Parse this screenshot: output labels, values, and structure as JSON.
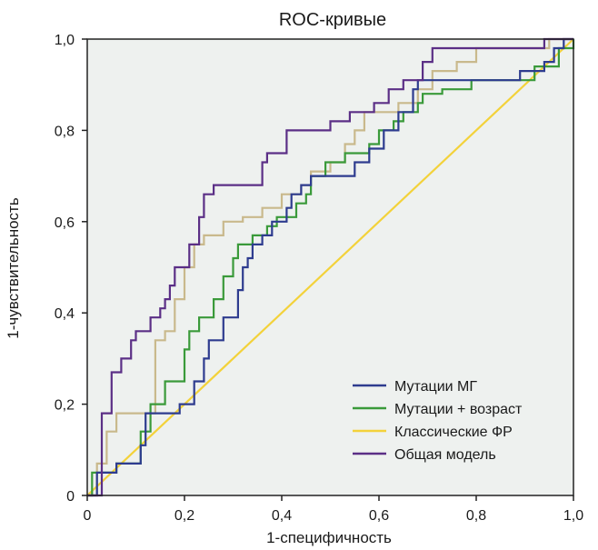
{
  "chart_data": {
    "type": "line",
    "title": "ROC-кривые",
    "xlabel": "1-специфичность",
    "ylabel": "1-чувствительность",
    "xlim": [
      0,
      1
    ],
    "ylim": [
      0,
      1
    ],
    "x_ticks": [
      "0",
      "0,2",
      "0,4",
      "0,6",
      "0,8",
      "1,0"
    ],
    "y_ticks": [
      "0",
      "0,2",
      "0,4",
      "0,6",
      "0,8",
      "1,0"
    ],
    "grid": false,
    "legend_position": "bottom-right",
    "plot_background": "#eef1ef",
    "series": [
      {
        "name": "Мутации МГ",
        "color": "#2e3c8f",
        "points": [
          [
            0,
            0
          ],
          [
            0.02,
            0
          ],
          [
            0.02,
            0.05
          ],
          [
            0.06,
            0.05
          ],
          [
            0.06,
            0.07
          ],
          [
            0.11,
            0.07
          ],
          [
            0.11,
            0.11
          ],
          [
            0.12,
            0.11
          ],
          [
            0.12,
            0.18
          ],
          [
            0.19,
            0.18
          ],
          [
            0.19,
            0.2
          ],
          [
            0.22,
            0.2
          ],
          [
            0.22,
            0.25
          ],
          [
            0.24,
            0.25
          ],
          [
            0.24,
            0.3
          ],
          [
            0.25,
            0.3
          ],
          [
            0.25,
            0.34
          ],
          [
            0.28,
            0.34
          ],
          [
            0.28,
            0.39
          ],
          [
            0.31,
            0.39
          ],
          [
            0.31,
            0.45
          ],
          [
            0.32,
            0.45
          ],
          [
            0.32,
            0.5
          ],
          [
            0.33,
            0.5
          ],
          [
            0.33,
            0.52
          ],
          [
            0.34,
            0.52
          ],
          [
            0.34,
            0.55
          ],
          [
            0.36,
            0.55
          ],
          [
            0.36,
            0.57
          ],
          [
            0.38,
            0.57
          ],
          [
            0.38,
            0.6
          ],
          [
            0.41,
            0.6
          ],
          [
            0.41,
            0.63
          ],
          [
            0.42,
            0.63
          ],
          [
            0.42,
            0.66
          ],
          [
            0.44,
            0.66
          ],
          [
            0.44,
            0.68
          ],
          [
            0.46,
            0.68
          ],
          [
            0.46,
            0.7
          ],
          [
            0.55,
            0.7
          ],
          [
            0.55,
            0.73
          ],
          [
            0.58,
            0.73
          ],
          [
            0.58,
            0.76
          ],
          [
            0.61,
            0.76
          ],
          [
            0.61,
            0.8
          ],
          [
            0.64,
            0.8
          ],
          [
            0.64,
            0.84
          ],
          [
            0.67,
            0.84
          ],
          [
            0.67,
            0.89
          ],
          [
            0.68,
            0.89
          ],
          [
            0.68,
            0.91
          ],
          [
            0.89,
            0.91
          ],
          [
            0.89,
            0.93
          ],
          [
            0.94,
            0.93
          ],
          [
            0.94,
            0.95
          ],
          [
            0.96,
            0.95
          ],
          [
            0.96,
            0.98
          ],
          [
            0.98,
            0.98
          ],
          [
            0.98,
            1.0
          ],
          [
            1.0,
            1.0
          ]
        ]
      },
      {
        "name": "Мутации + возраст",
        "color": "#3a9a3a",
        "points": [
          [
            0,
            0
          ],
          [
            0.01,
            0
          ],
          [
            0.01,
            0.05
          ],
          [
            0.06,
            0.05
          ],
          [
            0.06,
            0.07
          ],
          [
            0.11,
            0.07
          ],
          [
            0.11,
            0.14
          ],
          [
            0.13,
            0.14
          ],
          [
            0.13,
            0.2
          ],
          [
            0.16,
            0.2
          ],
          [
            0.16,
            0.25
          ],
          [
            0.2,
            0.25
          ],
          [
            0.2,
            0.32
          ],
          [
            0.21,
            0.32
          ],
          [
            0.21,
            0.36
          ],
          [
            0.23,
            0.36
          ],
          [
            0.23,
            0.39
          ],
          [
            0.26,
            0.39
          ],
          [
            0.26,
            0.43
          ],
          [
            0.28,
            0.43
          ],
          [
            0.28,
            0.48
          ],
          [
            0.3,
            0.48
          ],
          [
            0.3,
            0.52
          ],
          [
            0.31,
            0.52
          ],
          [
            0.31,
            0.55
          ],
          [
            0.34,
            0.55
          ],
          [
            0.34,
            0.57
          ],
          [
            0.37,
            0.57
          ],
          [
            0.37,
            0.59
          ],
          [
            0.39,
            0.59
          ],
          [
            0.39,
            0.61
          ],
          [
            0.43,
            0.61
          ],
          [
            0.43,
            0.64
          ],
          [
            0.45,
            0.64
          ],
          [
            0.45,
            0.66
          ],
          [
            0.46,
            0.66
          ],
          [
            0.46,
            0.7
          ],
          [
            0.49,
            0.7
          ],
          [
            0.49,
            0.73
          ],
          [
            0.53,
            0.73
          ],
          [
            0.53,
            0.75
          ],
          [
            0.58,
            0.75
          ],
          [
            0.58,
            0.77
          ],
          [
            0.6,
            0.77
          ],
          [
            0.6,
            0.8
          ],
          [
            0.63,
            0.8
          ],
          [
            0.63,
            0.82
          ],
          [
            0.65,
            0.82
          ],
          [
            0.65,
            0.84
          ],
          [
            0.68,
            0.84
          ],
          [
            0.68,
            0.86
          ],
          [
            0.69,
            0.86
          ],
          [
            0.69,
            0.88
          ],
          [
            0.73,
            0.88
          ],
          [
            0.73,
            0.89
          ],
          [
            0.79,
            0.89
          ],
          [
            0.79,
            0.91
          ],
          [
            0.92,
            0.91
          ],
          [
            0.92,
            0.94
          ],
          [
            0.97,
            0.94
          ],
          [
            0.97,
            0.98
          ],
          [
            1.0,
            0.98
          ],
          [
            1.0,
            1.0
          ]
        ]
      },
      {
        "name": "Классические ФР",
        "color": "#f3d23a",
        "points": [
          [
            0,
            0
          ],
          [
            1,
            1
          ]
        ]
      },
      {
        "name": "Общая модель",
        "color": "#5b2f86",
        "points": [
          [
            0,
            0
          ],
          [
            0.03,
            0
          ],
          [
            0.03,
            0.18
          ],
          [
            0.05,
            0.18
          ],
          [
            0.05,
            0.27
          ],
          [
            0.07,
            0.27
          ],
          [
            0.07,
            0.3
          ],
          [
            0.09,
            0.3
          ],
          [
            0.09,
            0.34
          ],
          [
            0.1,
            0.34
          ],
          [
            0.1,
            0.36
          ],
          [
            0.13,
            0.36
          ],
          [
            0.13,
            0.39
          ],
          [
            0.15,
            0.39
          ],
          [
            0.15,
            0.41
          ],
          [
            0.16,
            0.41
          ],
          [
            0.16,
            0.43
          ],
          [
            0.17,
            0.43
          ],
          [
            0.17,
            0.46
          ],
          [
            0.18,
            0.46
          ],
          [
            0.18,
            0.5
          ],
          [
            0.21,
            0.5
          ],
          [
            0.21,
            0.55
          ],
          [
            0.23,
            0.55
          ],
          [
            0.23,
            0.61
          ],
          [
            0.24,
            0.61
          ],
          [
            0.24,
            0.66
          ],
          [
            0.26,
            0.66
          ],
          [
            0.26,
            0.68
          ],
          [
            0.36,
            0.68
          ],
          [
            0.36,
            0.73
          ],
          [
            0.37,
            0.73
          ],
          [
            0.37,
            0.75
          ],
          [
            0.41,
            0.75
          ],
          [
            0.41,
            0.8
          ],
          [
            0.5,
            0.8
          ],
          [
            0.5,
            0.82
          ],
          [
            0.54,
            0.82
          ],
          [
            0.54,
            0.84
          ],
          [
            0.59,
            0.84
          ],
          [
            0.59,
            0.86
          ],
          [
            0.62,
            0.86
          ],
          [
            0.62,
            0.89
          ],
          [
            0.65,
            0.89
          ],
          [
            0.65,
            0.91
          ],
          [
            0.69,
            0.91
          ],
          [
            0.69,
            0.95
          ],
          [
            0.71,
            0.95
          ],
          [
            0.71,
            0.98
          ],
          [
            0.94,
            0.98
          ],
          [
            0.94,
            1.0
          ],
          [
            1.0,
            1.0
          ]
        ]
      },
      {
        "color": "#c9b98c",
        "points": [
          [
            0,
            0
          ],
          [
            0.02,
            0
          ],
          [
            0.02,
            0.07
          ],
          [
            0.04,
            0.07
          ],
          [
            0.04,
            0.14
          ],
          [
            0.06,
            0.14
          ],
          [
            0.06,
            0.18
          ],
          [
            0.14,
            0.18
          ],
          [
            0.14,
            0.34
          ],
          [
            0.16,
            0.34
          ],
          [
            0.16,
            0.36
          ],
          [
            0.18,
            0.36
          ],
          [
            0.18,
            0.43
          ],
          [
            0.2,
            0.43
          ],
          [
            0.2,
            0.5
          ],
          [
            0.22,
            0.5
          ],
          [
            0.22,
            0.55
          ],
          [
            0.24,
            0.55
          ],
          [
            0.24,
            0.57
          ],
          [
            0.28,
            0.57
          ],
          [
            0.28,
            0.6
          ],
          [
            0.32,
            0.6
          ],
          [
            0.32,
            0.61
          ],
          [
            0.36,
            0.61
          ],
          [
            0.36,
            0.63
          ],
          [
            0.4,
            0.63
          ],
          [
            0.4,
            0.66
          ],
          [
            0.44,
            0.66
          ],
          [
            0.44,
            0.68
          ],
          [
            0.46,
            0.68
          ],
          [
            0.46,
            0.71
          ],
          [
            0.5,
            0.71
          ],
          [
            0.5,
            0.73
          ],
          [
            0.53,
            0.73
          ],
          [
            0.53,
            0.77
          ],
          [
            0.55,
            0.77
          ],
          [
            0.55,
            0.8
          ],
          [
            0.57,
            0.8
          ],
          [
            0.57,
            0.84
          ],
          [
            0.64,
            0.84
          ],
          [
            0.64,
            0.86
          ],
          [
            0.68,
            0.86
          ],
          [
            0.68,
            0.89
          ],
          [
            0.71,
            0.89
          ],
          [
            0.71,
            0.93
          ],
          [
            0.76,
            0.93
          ],
          [
            0.76,
            0.95
          ],
          [
            0.8,
            0.95
          ],
          [
            0.8,
            0.98
          ],
          [
            0.95,
            0.98
          ],
          [
            0.95,
            1.0
          ],
          [
            1.0,
            1.0
          ]
        ]
      }
    ]
  }
}
